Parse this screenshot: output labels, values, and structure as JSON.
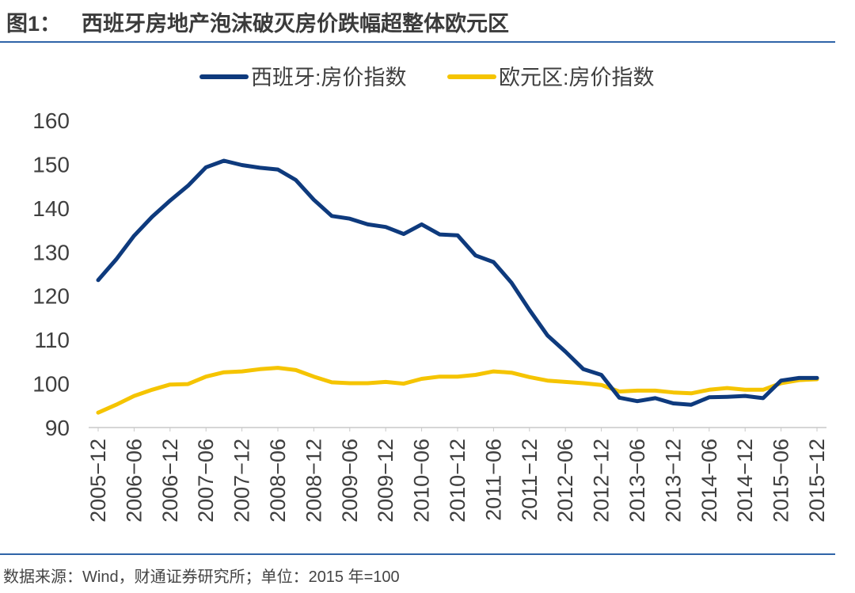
{
  "header": {
    "figure_label": "图1：",
    "title": "西班牙房地产泡沫破灭房价跌幅超整体欧元区"
  },
  "footer": {
    "source": "数据来源：Wind，财通证券研究所；单位：2015 年=100"
  },
  "chart_data": {
    "type": "line",
    "title": "西班牙房地产泡沫破灭房价跌幅超整体欧元区",
    "xlabel": "",
    "ylabel": "",
    "ylim": [
      90,
      160
    ],
    "yticks": [
      90,
      100,
      110,
      120,
      130,
      140,
      150,
      160
    ],
    "grid": false,
    "legend_position": "top-center",
    "x": [
      "2005-12",
      "2006-03",
      "2006-06",
      "2006-09",
      "2006-12",
      "2007-03",
      "2007-06",
      "2007-09",
      "2007-12",
      "2008-03",
      "2008-06",
      "2008-09",
      "2008-12",
      "2009-03",
      "2009-06",
      "2009-09",
      "2009-12",
      "2010-03",
      "2010-06",
      "2010-09",
      "2010-12",
      "2011-03",
      "2011-06",
      "2011-09",
      "2011-12",
      "2012-03",
      "2012-06",
      "2012-09",
      "2012-12",
      "2013-03",
      "2013-06",
      "2013-09",
      "2013-12",
      "2014-03",
      "2014-06",
      "2014-09",
      "2014-12",
      "2015-03",
      "2015-06",
      "2015-09",
      "2015-12"
    ],
    "xtick_labels": [
      "2005−12",
      "2006−06",
      "2006−12",
      "2007−06",
      "2007−12",
      "2008−06",
      "2008−12",
      "2009−06",
      "2009−12",
      "2010−06",
      "2010−12",
      "2011−06",
      "2011−12",
      "2012−06",
      "2012−12",
      "2013−06",
      "2013−12",
      "2014−06",
      "2014−12",
      "2015−06",
      "2015−12"
    ],
    "series": [
      {
        "name": "西班牙:房价指数",
        "color": "#0e3a7d",
        "values": [
          123.6,
          128.3,
          133.7,
          138.0,
          141.7,
          145.1,
          149.3,
          150.8,
          149.8,
          149.2,
          148.8,
          146.4,
          141.9,
          138.2,
          137.6,
          136.3,
          135.7,
          134.1,
          136.3,
          134.0,
          133.8,
          129.2,
          127.7,
          123.0,
          116.8,
          111.0,
          107.3,
          103.3,
          102.0,
          96.8,
          96.0,
          96.7,
          95.5,
          95.2,
          96.9,
          97.0,
          97.2,
          96.7,
          100.7,
          101.3,
          101.3
        ]
      },
      {
        "name": "欧元区:房价指数",
        "color": "#f5c400",
        "values": [
          93.4,
          95.2,
          97.2,
          98.6,
          99.8,
          99.9,
          101.6,
          102.6,
          102.8,
          103.3,
          103.6,
          103.1,
          101.6,
          100.3,
          100.1,
          100.1,
          100.4,
          100.0,
          101.1,
          101.6,
          101.6,
          102.0,
          102.8,
          102.5,
          101.5,
          100.7,
          100.4,
          100.1,
          99.7,
          98.2,
          98.4,
          98.4,
          98.0,
          97.8,
          98.6,
          99.0,
          98.6,
          98.6,
          100.1,
          100.8,
          101.0
        ]
      }
    ]
  }
}
